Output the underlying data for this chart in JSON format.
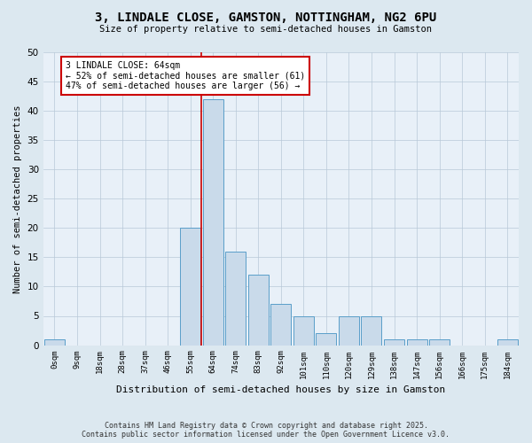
{
  "title_line1": "3, LINDALE CLOSE, GAMSTON, NOTTINGHAM, NG2 6PU",
  "title_line2": "Size of property relative to semi-detached houses in Gamston",
  "xlabel": "Distribution of semi-detached houses by size in Gamston",
  "ylabel": "Number of semi-detached properties",
  "bar_labels": [
    "0sqm",
    "9sqm",
    "18sqm",
    "28sqm",
    "37sqm",
    "46sqm",
    "55sqm",
    "64sqm",
    "74sqm",
    "83sqm",
    "92sqm",
    "101sqm",
    "110sqm",
    "120sqm",
    "129sqm",
    "138sqm",
    "147sqm",
    "156sqm",
    "166sqm",
    "175sqm",
    "184sqm"
  ],
  "bar_values": [
    1,
    0,
    0,
    0,
    0,
    0,
    20,
    42,
    16,
    12,
    7,
    5,
    2,
    5,
    5,
    1,
    1,
    1,
    0,
    0,
    1
  ],
  "bar_color": "#c9daea",
  "bar_edge_color": "#5a9ec9",
  "highlight_index": 7,
  "highlight_line_color": "#cc0000",
  "annotation_text": "3 LINDALE CLOSE: 64sqm\n← 52% of semi-detached houses are smaller (61)\n47% of semi-detached houses are larger (56) →",
  "annotation_box_color": "#ffffff",
  "annotation_box_edge": "#cc0000",
  "ylim": [
    0,
    50
  ],
  "yticks": [
    0,
    5,
    10,
    15,
    20,
    25,
    30,
    35,
    40,
    45,
    50
  ],
  "footer_line1": "Contains HM Land Registry data © Crown copyright and database right 2025.",
  "footer_line2": "Contains public sector information licensed under the Open Government Licence v3.0.",
  "bg_color": "#dce8f0",
  "plot_bg_color": "#e8f0f8",
  "grid_color": "#b8c8d8"
}
